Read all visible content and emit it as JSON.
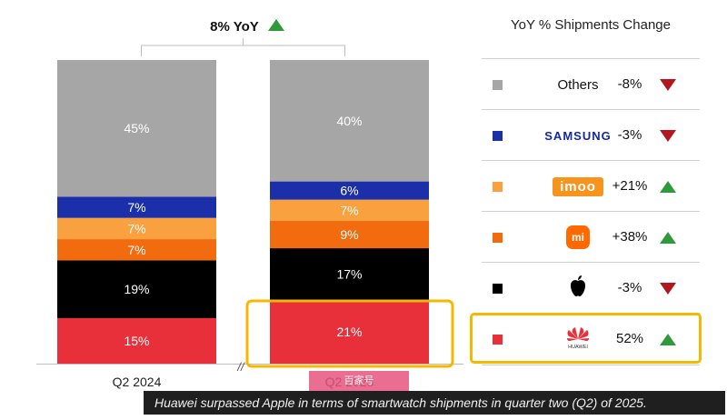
{
  "chart_data": {
    "type": "bar",
    "stacked": true,
    "categories": [
      "Q2 2024",
      "Q2 2025"
    ],
    "series": [
      {
        "key": "huawei",
        "values": [
          15,
          21
        ],
        "color": "#e8303a"
      },
      {
        "key": "apple",
        "values": [
          19,
          17
        ],
        "color": "#000000"
      },
      {
        "key": "xiaomi",
        "values": [
          7,
          9
        ],
        "color": "#f26b0f"
      },
      {
        "key": "imoo",
        "values": [
          7,
          7
        ],
        "color": "#f9a13e"
      },
      {
        "key": "samsung",
        "values": [
          7,
          6
        ],
        "color": "#1a2fa8"
      },
      {
        "key": "others",
        "values": [
          45,
          40
        ],
        "color": "#a6a6a6"
      }
    ],
    "unit": "%",
    "yoy_label": "8% YoY",
    "axis_break": "//"
  },
  "legend": {
    "title": "YoY % Shipments Change",
    "rows": [
      {
        "brand": "Others",
        "change": "-8%",
        "direction": "down",
        "color": "#a6a6a6",
        "logo": "text"
      },
      {
        "brand": "SAMSUNG",
        "change": "-3%",
        "direction": "down",
        "color": "#1a2fa8",
        "logo": "samsung-logo"
      },
      {
        "brand": "imoo",
        "change": "+21%",
        "direction": "up",
        "color": "#f9a13e",
        "logo": "imoo-logo"
      },
      {
        "brand": "mi",
        "change": "+38%",
        "direction": "up",
        "color": "#f26b0f",
        "logo": "xiaomi-logo"
      },
      {
        "brand": "",
        "change": "-3%",
        "direction": "down",
        "color": "#000000",
        "logo": "apple-icon"
      },
      {
        "brand": "HUAWEI",
        "change": "52%",
        "direction": "up",
        "color": "#e8303a",
        "logo": "huawei-logo"
      }
    ]
  },
  "caption": "Huawei surpassed Apple in terms of smartwatch shipments in quarter two (Q2) of 2025.",
  "watermark": "百家号"
}
